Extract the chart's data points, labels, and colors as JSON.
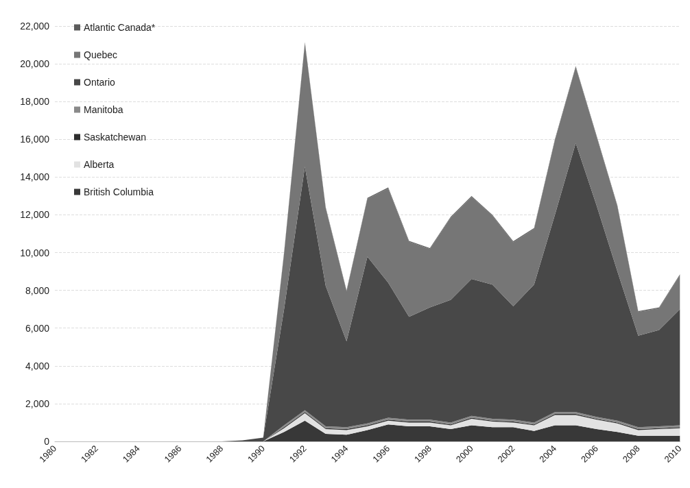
{
  "chart_data": {
    "type": "area",
    "stacked": true,
    "categories": [
      "1980",
      null,
      "1982",
      null,
      "1984",
      null,
      "1986",
      null,
      "1988",
      null,
      "1990",
      null,
      "1992",
      null,
      "1994",
      null,
      "1996",
      null,
      "1998",
      null,
      "2000",
      null,
      "2002",
      null,
      "2004",
      null,
      "2006",
      null,
      "2008",
      null,
      "2010"
    ],
    "series": [
      {
        "name": "British Columbia",
        "color": "#383838",
        "values": [
          0,
          0,
          0,
          0,
          0,
          0,
          0,
          0,
          0,
          0,
          0,
          500,
          1100,
          400,
          350,
          600,
          900,
          800,
          800,
          650,
          850,
          750,
          750,
          550,
          850,
          850,
          650,
          500,
          300,
          300,
          300
        ]
      },
      {
        "name": "Alberta",
        "color": "#e2e2e2",
        "values": [
          0,
          0,
          0,
          0,
          0,
          0,
          0,
          0,
          0,
          0,
          0,
          200,
          400,
          250,
          250,
          200,
          200,
          200,
          200,
          200,
          350,
          300,
          250,
          300,
          550,
          550,
          500,
          450,
          300,
          350,
          400
        ]
      },
      {
        "name": "Saskatchewan",
        "color": "#2e2e2e",
        "values": [
          0,
          0,
          0,
          0,
          0,
          0,
          0,
          0,
          0,
          0,
          0,
          50,
          50,
          50,
          50,
          50,
          50,
          50,
          50,
          50,
          50,
          50,
          50,
          50,
          50,
          50,
          50,
          50,
          50,
          50,
          50
        ]
      },
      {
        "name": "Manitoba",
        "color": "#8a8a8a",
        "values": [
          0,
          0,
          0,
          0,
          0,
          0,
          0,
          0,
          0,
          0,
          0,
          100,
          100,
          100,
          100,
          100,
          100,
          100,
          100,
          100,
          100,
          100,
          100,
          100,
          100,
          100,
          100,
          100,
          100,
          100,
          100
        ]
      },
      {
        "name": "Ontario",
        "color": "#484848",
        "values": [
          0,
          0,
          0,
          0,
          0,
          0,
          0,
          0,
          0,
          50,
          200,
          6150,
          12900,
          7430,
          4550,
          8830,
          7150,
          5450,
          5950,
          6500,
          7250,
          7100,
          6010,
          7300,
          10450,
          14250,
          11200,
          7900,
          4850,
          5100,
          6150
        ]
      },
      {
        "name": "Quebec",
        "color": "#767676",
        "values": [
          0,
          0,
          0,
          0,
          0,
          0,
          0,
          0,
          0,
          0,
          0,
          2950,
          6550,
          4120,
          2650,
          3070,
          5000,
          3970,
          3090,
          4350,
          4350,
          3650,
          3390,
          2950,
          3950,
          4030,
          3650,
          3450,
          1250,
          1150,
          1800
        ]
      },
      {
        "name": "Atlantic Canada*",
        "color": "#5c5c5c",
        "values": [
          0,
          0,
          0,
          0,
          0,
          0,
          0,
          0,
          0,
          0,
          0,
          50,
          50,
          50,
          50,
          50,
          50,
          50,
          50,
          50,
          50,
          50,
          50,
          50,
          50,
          50,
          50,
          50,
          50,
          50,
          50
        ]
      }
    ],
    "ylim": [
      0,
      22000
    ],
    "yticks": [
      0,
      {
        "value": 2000,
        "label": "2,000"
      },
      {
        "value": 4000,
        "label": "4,000"
      },
      {
        "value": 6000,
        "label": "6,000"
      },
      {
        "value": 8000,
        "label": "8,000"
      },
      {
        "value": 10000,
        "label": "10,000"
      },
      {
        "value": 12000,
        "label": "12,000"
      },
      {
        "value": 14000,
        "label": "14,000"
      },
      {
        "value": 16000,
        "label": "16,000"
      },
      {
        "value": 18000,
        "label": "18,000"
      },
      {
        "value": 20000,
        "label": "20,000"
      },
      {
        "value": 22000,
        "label": "22,000"
      }
    ],
    "grid": "y",
    "legend": "top left"
  }
}
